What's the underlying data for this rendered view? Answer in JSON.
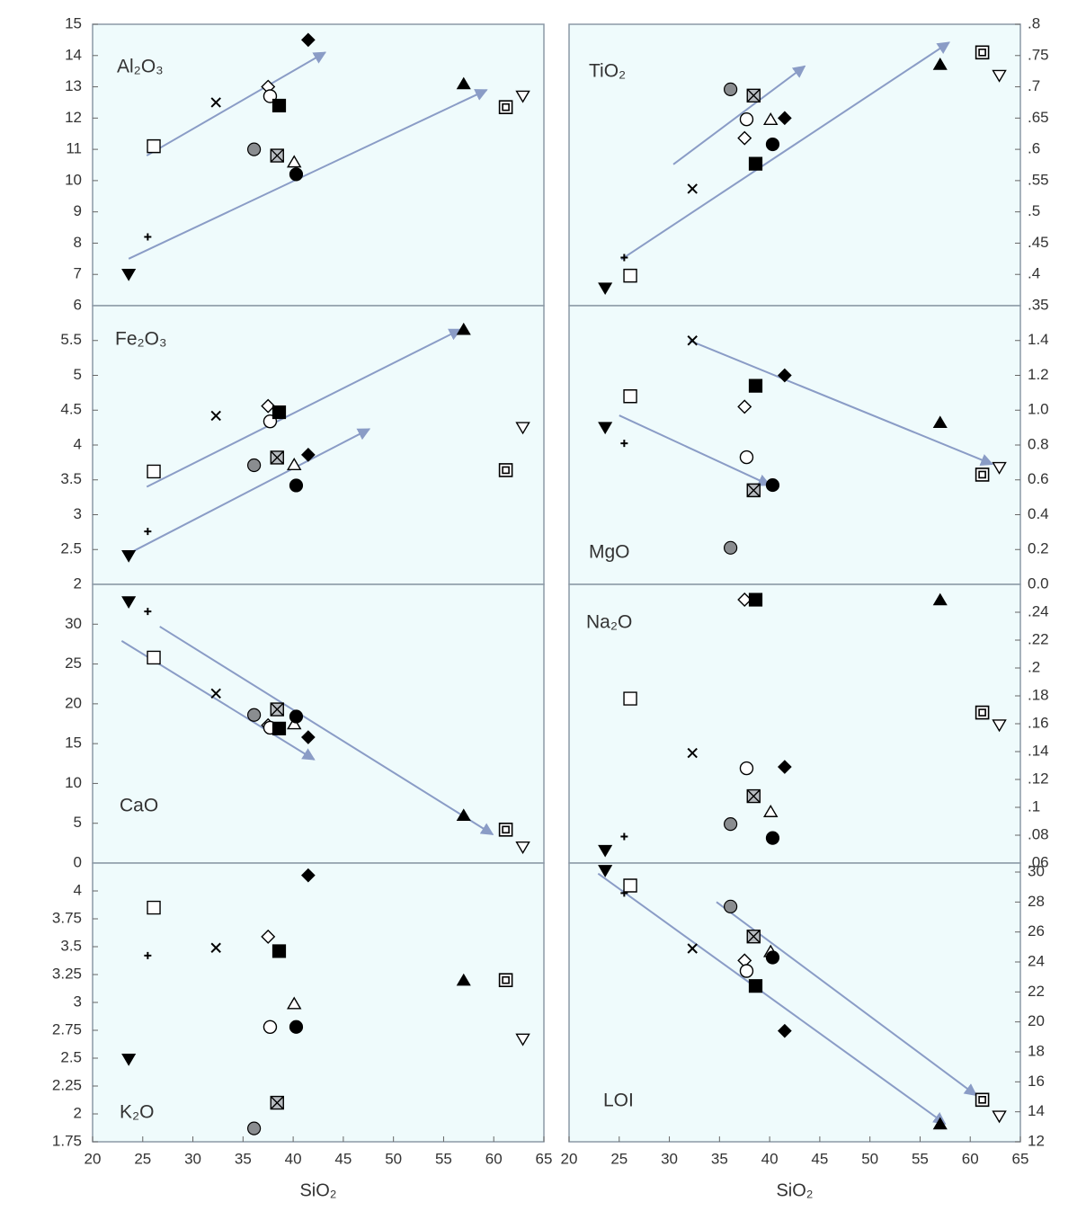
{
  "markers": [
    "tri-down-filled",
    "plus",
    "square-open",
    "cross",
    "circle-grey",
    "diamond-open",
    "circle-open",
    "square-filled",
    "square-x",
    "tri-open",
    "circle-filled",
    "diamond-filled",
    "tri-filled",
    "square-double",
    "tri-down-open"
  ],
  "chart_data": [
    {
      "type": "scatter",
      "title": "Al₂O₃",
      "x": [
        23.6,
        25.5,
        26.1,
        32.3,
        36.1,
        37.5,
        37.7,
        38.6,
        38.4,
        40.1,
        40.3,
        41.5,
        57.0,
        61.2,
        62.9
      ],
      "y": [
        7.0,
        8.2,
        11.1,
        12.5,
        11.0,
        13.0,
        12.7,
        12.4,
        10.8,
        10.6,
        10.2,
        14.5,
        13.1,
        12.35,
        12.7
      ],
      "xlim": [
        20,
        65
      ],
      "ylim": [
        6,
        15
      ],
      "yticks": [
        6,
        7,
        8,
        9,
        10,
        11,
        12,
        13,
        14,
        15
      ],
      "trend_arrows": [
        {
          "x": [
            25.4,
            43.2
          ],
          "y": [
            10.8,
            14.1
          ]
        },
        {
          "x": [
            23.6,
            59.3
          ],
          "y": [
            7.5,
            12.9
          ]
        }
      ]
    },
    {
      "type": "scatter",
      "title": "TiO₂",
      "x": [
        23.6,
        25.5,
        26.1,
        32.3,
        36.1,
        37.5,
        37.7,
        38.6,
        38.4,
        40.1,
        40.3,
        41.5,
        57.0,
        61.2,
        62.9
      ],
      "y": [
        0.378,
        0.427,
        0.398,
        0.537,
        0.696,
        0.618,
        0.648,
        0.577,
        0.686,
        0.648,
        0.608,
        0.65,
        0.736,
        0.755,
        0.718
      ],
      "xlim": [
        20,
        65
      ],
      "ylim": [
        0.35,
        0.8
      ],
      "yticks": [
        {
          "value": 0.35,
          "label": ".35"
        },
        {
          "value": 0.4,
          "label": ".4"
        },
        {
          "value": 0.45,
          "label": ".45"
        },
        {
          "value": 0.5,
          "label": ".5"
        },
        {
          "value": 0.55,
          "label": ".55"
        },
        {
          "value": 0.6,
          "label": ".6"
        },
        {
          "value": 0.65,
          "label": ".65"
        },
        {
          "value": 0.7,
          "label": ".7"
        },
        {
          "value": 0.75,
          "label": ".75"
        },
        {
          "value": 0.8,
          "label": ".8"
        }
      ],
      "trend_arrows": [
        {
          "x": [
            30.4,
            43.5
          ],
          "y": [
            0.576,
            0.733
          ]
        },
        {
          "x": [
            25.2,
            57.9
          ],
          "y": [
            0.424,
            0.771
          ]
        }
      ]
    },
    {
      "type": "scatter",
      "title": "Fe₂O₃",
      "x": [
        23.6,
        25.5,
        26.1,
        32.3,
        36.1,
        37.5,
        37.7,
        38.6,
        38.4,
        40.1,
        40.3,
        41.5,
        57.0,
        61.2,
        62.9
      ],
      "y": [
        2.41,
        2.76,
        3.62,
        4.42,
        3.71,
        4.56,
        4.34,
        4.47,
        3.82,
        3.72,
        3.42,
        3.86,
        5.66,
        3.64,
        4.25
      ],
      "xlim": [
        20,
        65
      ],
      "ylim": [
        2,
        6
      ],
      "yticks": [
        2,
        2.5,
        3,
        3.5,
        4,
        4.5,
        5,
        5.5
      ],
      "trend_arrows": [
        {
          "x": [
            25.4,
            56.7
          ],
          "y": [
            3.4,
            5.66
          ]
        },
        {
          "x": [
            24.1,
            47.6
          ],
          "y": [
            2.48,
            4.23
          ]
        }
      ]
    },
    {
      "type": "scatter",
      "title": "MgO",
      "x": [
        23.6,
        25.5,
        26.1,
        32.3,
        36.1,
        37.5,
        37.7,
        38.6,
        38.4,
        40.1,
        40.3,
        41.5,
        57.0,
        61.2,
        62.9
      ],
      "y": [
        0.9,
        0.81,
        1.08,
        1.4,
        0.21,
        1.02,
        0.73,
        1.14,
        0.54,
        null,
        0.57,
        1.2,
        0.93,
        0.63,
        0.67
      ],
      "xlim": [
        20,
        65
      ],
      "ylim": [
        0,
        1.6
      ],
      "yticks": [
        {
          "value": 0,
          "label": "0.0"
        },
        0.2,
        0.4,
        0.6,
        0.8,
        {
          "value": 1,
          "label": "1.0"
        },
        1.2,
        1.4
      ],
      "trend_arrows": [
        {
          "x": [
            32.0,
            62.2
          ],
          "y": [
            1.4,
            0.69
          ]
        },
        {
          "x": [
            25.0,
            40.0
          ],
          "y": [
            0.97,
            0.57
          ]
        }
      ]
    },
    {
      "type": "scatter",
      "title": "CaO",
      "x": [
        23.6,
        25.5,
        26.1,
        32.3,
        36.1,
        37.5,
        37.7,
        38.6,
        38.4,
        40.1,
        40.3,
        41.5,
        57.0,
        61.2,
        62.9
      ],
      "y": [
        32.8,
        31.6,
        25.8,
        21.3,
        18.6,
        17.3,
        17.0,
        16.9,
        19.3,
        17.5,
        18.4,
        15.8,
        6.0,
        4.2,
        2.0
      ],
      "xlim": [
        20,
        65
      ],
      "ylim": [
        0,
        35
      ],
      "yticks": [
        0,
        5,
        10,
        15,
        20,
        25,
        30
      ],
      "trend_arrows": [
        {
          "x": [
            22.9,
            42.1
          ],
          "y": [
            27.9,
            13.0
          ]
        },
        {
          "x": [
            26.7,
            59.9
          ],
          "y": [
            29.7,
            3.6
          ]
        }
      ]
    },
    {
      "type": "scatter",
      "title": "Na₂O",
      "x": [
        23.6,
        25.5,
        26.1,
        32.3,
        36.1,
        37.5,
        37.7,
        38.6,
        38.4,
        40.1,
        40.3,
        41.5,
        57.0,
        61.2,
        62.9
      ],
      "y": [
        0.069,
        0.079,
        0.178,
        0.139,
        0.088,
        0.249,
        0.128,
        0.249,
        0.108,
        0.097,
        0.078,
        0.129,
        0.249,
        0.168,
        0.159
      ],
      "xlim": [
        20,
        65
      ],
      "ylim": [
        0.06,
        0.26
      ],
      "yticks": [
        {
          "value": 0.06,
          "label": ".06"
        },
        {
          "value": 0.08,
          "label": ".08"
        },
        {
          "value": 0.1,
          "label": ".1"
        },
        {
          "value": 0.12,
          "label": ".12"
        },
        {
          "value": 0.14,
          "label": ".14"
        },
        {
          "value": 0.16,
          "label": ".16"
        },
        {
          "value": 0.18,
          "label": ".18"
        },
        {
          "value": 0.2,
          "label": ".2"
        },
        {
          "value": 0.22,
          "label": ".22"
        },
        {
          "value": 0.24,
          "label": ".24"
        }
      ]
    },
    {
      "type": "scatter",
      "title": "K₂O",
      "x": [
        23.6,
        25.5,
        26.1,
        32.3,
        36.1,
        37.5,
        37.7,
        38.6,
        38.4,
        40.1,
        40.3,
        41.5,
        57.0,
        61.2,
        62.9
      ],
      "y": [
        2.49,
        3.42,
        3.85,
        3.49,
        1.87,
        3.59,
        2.78,
        3.46,
        2.1,
        2.99,
        2.78,
        4.14,
        3.2,
        3.2,
        2.67
      ],
      "xlim": [
        20,
        65
      ],
      "ylim": [
        1.75,
        4.25
      ],
      "yticks": [
        1.75,
        2,
        2.25,
        2.5,
        2.75,
        3,
        3.25,
        3.5,
        3.75,
        4
      ],
      "xticks": [
        20,
        25,
        30,
        35,
        40,
        45,
        50,
        55,
        60,
        65
      ],
      "xlabel": "SiO₂"
    },
    {
      "type": "scatter",
      "title": "LOI",
      "x": [
        23.6,
        25.5,
        26.1,
        32.3,
        36.1,
        37.5,
        37.7,
        38.6,
        38.4,
        40.1,
        40.3,
        41.5,
        57.0,
        61.2,
        62.9
      ],
      "y": [
        30.1,
        28.6,
        29.1,
        24.9,
        27.7,
        24.1,
        23.4,
        22.4,
        25.7,
        24.7,
        24.3,
        19.4,
        13.2,
        14.8,
        13.7
      ],
      "xlim": [
        20,
        65
      ],
      "ylim": [
        12,
        30.6
      ],
      "yticks": [
        12,
        14,
        16,
        18,
        20,
        22,
        24,
        26,
        28,
        30
      ],
      "xticks": [
        20,
        25,
        30,
        35,
        40,
        45,
        50,
        55,
        60,
        65
      ],
      "xlabel": "SiO₂",
      "trend_arrows": [
        {
          "x": [
            22.9,
            57.5
          ],
          "y": [
            29.9,
            13.2
          ]
        },
        {
          "x": [
            34.7,
            60.6
          ],
          "y": [
            28.0,
            15.1
          ]
        }
      ]
    }
  ]
}
